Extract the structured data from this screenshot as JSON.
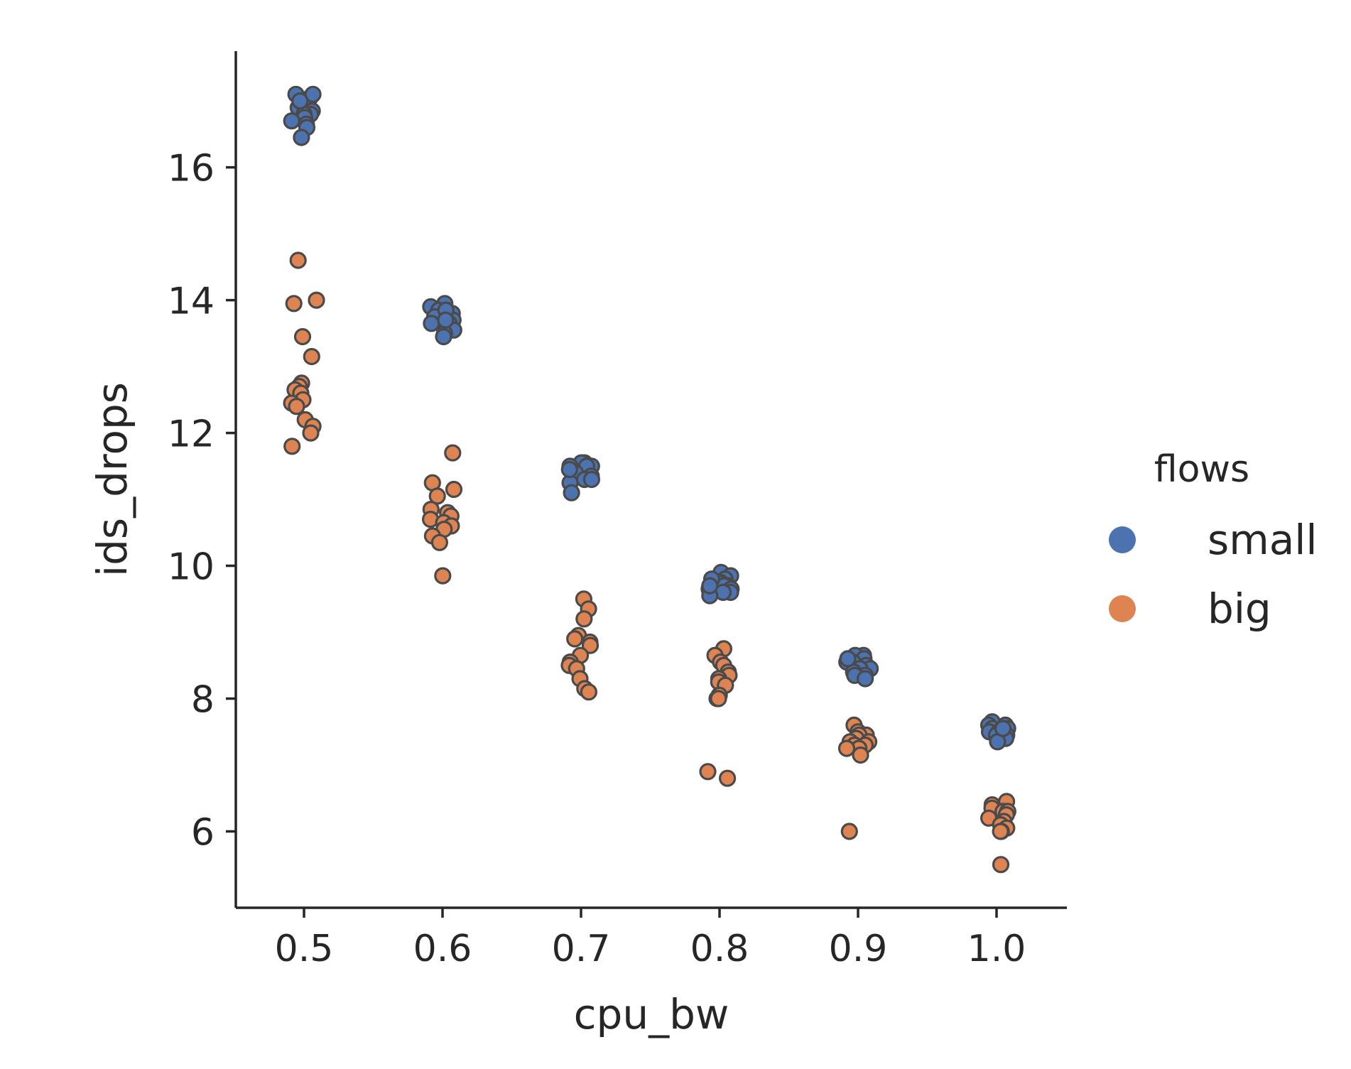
{
  "chart_data": {
    "type": "scatter",
    "title": "",
    "xlabel": "cpu_bw",
    "ylabel": "ids_drops",
    "categories": [
      "0.5",
      "0.6",
      "0.7",
      "0.8",
      "0.9",
      "1.0"
    ],
    "category_values": [
      0.5,
      0.6,
      0.7,
      0.8,
      0.9,
      1.0
    ],
    "ylim": [
      4.85,
      17.75
    ],
    "yticks": [
      6,
      8,
      10,
      12,
      14,
      16
    ],
    "ytick_labels": [
      "6",
      "8",
      "10",
      "12",
      "14",
      "16"
    ],
    "grid": false,
    "legend": {
      "title": "flows",
      "position": "right"
    },
    "series": [
      {
        "name": "small",
        "color": "#4c72b0",
        "points": [
          {
            "x": 0.5,
            "y": [
              17.1,
              17.05,
              17.0,
              16.95,
              16.9,
              16.85,
              16.8,
              16.8,
              16.75,
              16.75,
              16.7,
              16.65,
              16.6,
              16.45,
              17.1,
              17.0
            ]
          },
          {
            "x": 0.6,
            "y": [
              13.95,
              13.9,
              13.85,
              13.8,
              13.75,
              13.7,
              13.7,
              13.65,
              13.65,
              13.6,
              13.55,
              13.5,
              13.45,
              13.85,
              13.7
            ]
          },
          {
            "x": 0.7,
            "y": [
              11.55,
              11.55,
              11.5,
              11.5,
              11.45,
              11.4,
              11.35,
              11.3,
              11.3,
              11.25,
              11.1,
              11.5,
              11.45
            ]
          },
          {
            "x": 0.8,
            "y": [
              9.9,
              9.85,
              9.8,
              9.75,
              9.75,
              9.7,
              9.7,
              9.65,
              9.65,
              9.6,
              9.6,
              9.55,
              9.8,
              9.7
            ]
          },
          {
            "x": 0.9,
            "y": [
              8.65,
              8.65,
              8.6,
              8.55,
              8.55,
              8.5,
              8.45,
              8.45,
              8.4,
              8.35,
              8.35,
              8.3,
              8.6
            ]
          },
          {
            "x": 1.0,
            "y": [
              7.65,
              7.6,
              7.6,
              7.55,
              7.55,
              7.5,
              7.5,
              7.5,
              7.45,
              7.45,
              7.4,
              7.35,
              7.55
            ]
          }
        ]
      },
      {
        "name": "big",
        "color": "#dd8452",
        "points": [
          {
            "x": 0.5,
            "y": [
              14.6,
              14.0,
              13.95,
              13.45,
              13.15,
              12.75,
              12.7,
              12.65,
              12.6,
              12.5,
              12.45,
              12.4,
              12.2,
              12.1,
              12.0,
              11.8
            ]
          },
          {
            "x": 0.6,
            "y": [
              11.7,
              11.25,
              11.15,
              11.05,
              10.85,
              10.8,
              10.75,
              10.7,
              10.65,
              10.6,
              10.55,
              10.45,
              10.35,
              9.85
            ]
          },
          {
            "x": 0.7,
            "y": [
              9.5,
              9.35,
              9.2,
              8.95,
              8.9,
              8.85,
              8.8,
              8.65,
              8.55,
              8.5,
              8.45,
              8.3,
              8.15,
              8.1
            ]
          },
          {
            "x": 0.8,
            "y": [
              8.75,
              8.65,
              8.55,
              8.5,
              8.4,
              8.35,
              8.3,
              8.25,
              8.2,
              8.05,
              8.0,
              8.0,
              6.9,
              6.8
            ]
          },
          {
            "x": 0.9,
            "y": [
              7.6,
              7.5,
              7.45,
              7.45,
              7.4,
              7.35,
              7.35,
              7.3,
              7.3,
              7.25,
              7.25,
              7.15,
              6.0
            ]
          },
          {
            "x": 1.0,
            "y": [
              6.45,
              6.4,
              6.35,
              6.3,
              6.3,
              6.25,
              6.2,
              6.15,
              6.1,
              6.05,
              6.0,
              6.0,
              5.5
            ]
          }
        ]
      }
    ]
  }
}
